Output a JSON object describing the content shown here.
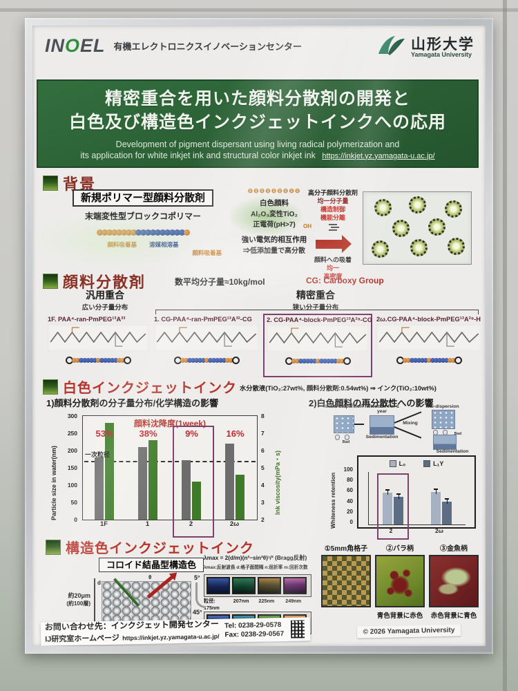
{
  "header": {
    "logo_parts": [
      "IN",
      "O",
      "EL"
    ],
    "center": "有機エレクトロニクスイノベーションセンター",
    "univ_ja": "山形大学",
    "univ_en": "Yamagata University"
  },
  "title": {
    "ja1": "精密重合を用いた顔料分散剤の開発と",
    "ja2": "白色及び構造色インクジェットインクへの応用",
    "en1": "Development of pigment dispersant using living radical polymerization and",
    "en2": "its application for white inkjet ink and structural color inkjet ink",
    "url": "https://inkjet.yz.yamagata-u.ac.jp/"
  },
  "background": {
    "heading": "背景",
    "box_label": "新規ポリマー型顔料分散剤",
    "copolymer": "末端変性型ブロックコポリマー",
    "label_adsorb": "顔料吸着基",
    "label_solvent": "溶媒相溶基",
    "label_adsorb2": "顔料吸着基",
    "minus_chain": "⊖⊖⊖⊖⊖⊖⊖⊖⊖",
    "pigment_line1": "白色顔料",
    "pigment_line2": "Al₂O₃変性TiO₂",
    "pigment_line3": "正電荷(pH>7)",
    "cooh": "OH",
    "interaction1": "強い電気的相互作用",
    "interaction2": "⇒低添加量で高分散",
    "right_title": "高分子顔料分散剤",
    "right_l1": "均一分子量",
    "right_l2": "構造制御",
    "right_l3": "機能分離",
    "adsorption": "顔料への吸着",
    "ads1": "均一",
    "ads2": "高密度"
  },
  "dispersant": {
    "heading": "顔料分散剤",
    "mw": "数平均分子量≈10kg/mol",
    "cg": "CG: Carboxy Group",
    "conv": "汎用重合",
    "conv_sub": "広い分子量分布",
    "precise": "精密重合",
    "precise_sub": "狭い分子量分布",
    "panels": [
      {
        "label": "1F. PAA⁴-ran-PmPEG¹³A³³"
      },
      {
        "label": "1. CG-PAA⁴-ran-PmPEG¹³A³²-CG"
      },
      {
        "label": "2. CG-PAA⁴-block-PmPEG¹³A²⁹-CG"
      },
      {
        "label": "2ω.CG-PAA⁴-block-PmPEG¹³A²⁹-H"
      }
    ]
  },
  "white_ink": {
    "heading": "白色インクジェットインク",
    "condition": "水分散液(TiO₂:27wt%, 顔料分散剤:0.54wt%) ⇒ インク(TiO₂:10wt%)",
    "sub1": "1)顔料分散剤の分子量分布/化学構造の影響",
    "sub2": "2)白色顔料の再分散性への影響",
    "diagram": {
      "initial": "Initial dispersion",
      "retention": "Retention For 1 year",
      "sediment1": "Sedimentation",
      "mixing": "Mixing",
      "redispersion": "Re-dispersion",
      "sediment2": "Sedimentation",
      "bad": "Bad"
    }
  },
  "structural": {
    "heading": "構造色インクジェットインク",
    "colloid": "コロイド結晶型構造色",
    "thickness": "約20μm",
    "layers": "(約100層)",
    "d_label": "d",
    "theta": "θ",
    "equation": "λmax = 2(d/m)(n²−sin²θ)¹/² (Bragg反射)",
    "eq_legend": "λmax:反射波長  d:格子面間隔  n:屈折率  m:回折次数",
    "angle_top": "5°",
    "angle_bottom": "45°",
    "sizes": [
      "粒径: 175nm",
      "207nm",
      "225nm",
      "249nm"
    ],
    "samples": [
      {
        "label": "①5mm角格子",
        "caption": ""
      },
      {
        "label": "②バラ柄",
        "caption": "青色背景に赤色"
      },
      {
        "label": "③金魚柄",
        "caption": "赤色背景に青色"
      }
    ]
  },
  "footer": {
    "contact": "お問い合わせ先：インクジェット開発センター",
    "homepage": "IJ研究室ホームページ",
    "url": "https://inkjet.yz.yamagata-u.ac.jp/",
    "tel": "Tel:  0238-29-0578",
    "fax": "Fax: 0238-29-0567",
    "copyright": "© 2026  Yamagata University"
  },
  "chart_data": [
    {
      "type": "bar",
      "title": "顔料沈降度(1week)",
      "categories": [
        "1F",
        "1",
        "2",
        "2ω"
      ],
      "series": [
        {
          "name": "Particle size in water",
          "axis": "left",
          "color": "#6d6d6d",
          "values": [
            180,
            210,
            172,
            220
          ]
        },
        {
          "name": "Ink viscosity",
          "axis": "right",
          "color": "#3e7a28",
          "values": [
            7.6,
            6.6,
            4.2,
            4.6
          ]
        }
      ],
      "sedimentation_labels": [
        "53%",
        "38%",
        "9%",
        "16%"
      ],
      "ylabel": "Particle size in water(nm)",
      "ylim": [
        0,
        300
      ],
      "yticks": [
        0,
        50,
        100,
        150,
        200,
        250,
        300
      ],
      "y2label": "Ink viscosity(mPa・s)",
      "y2lim": [
        2,
        8
      ],
      "y2ticks": [
        2,
        3,
        4,
        5,
        6,
        7,
        8
      ],
      "reference_line": {
        "label": "一次粒径",
        "value": 170
      },
      "highlight_category": "2"
    },
    {
      "type": "bar",
      "categories": [
        "2",
        "2ω"
      ],
      "series": [
        {
          "name": "L₀",
          "color": "#a6b2c2",
          "values": [
            61,
            62
          ]
        },
        {
          "name": "L₁Y",
          "color": "#5c6e84",
          "values": [
            53,
            44
          ]
        }
      ],
      "ylabel": "Whiteness retention",
      "ylim": [
        0,
        100
      ],
      "yticks": [
        0,
        20,
        40,
        60,
        80,
        100
      ],
      "legend_position": "top",
      "highlight_category": "2"
    }
  ]
}
